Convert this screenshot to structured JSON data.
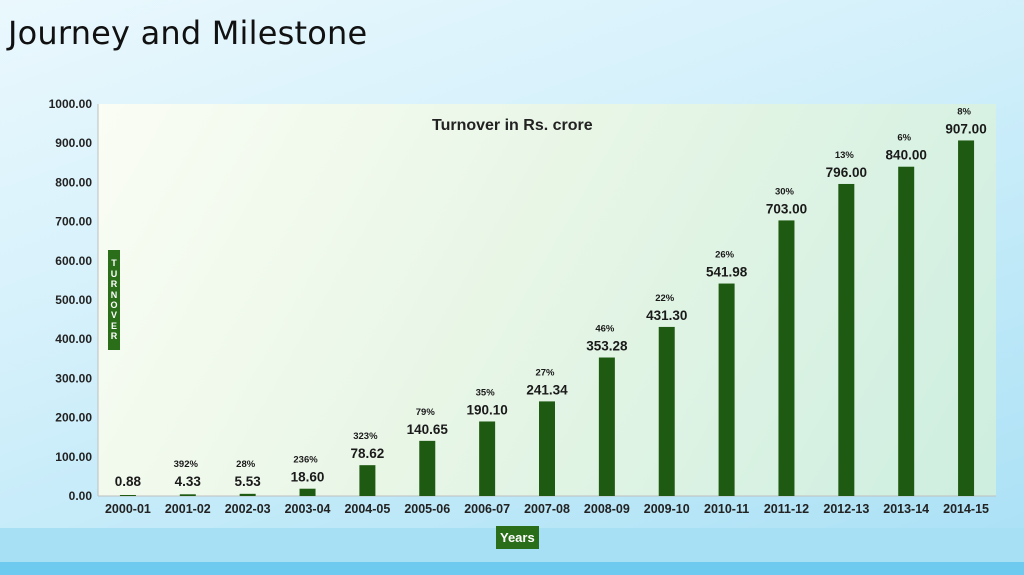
{
  "slide_title": "Journey and Milestone",
  "colors": {
    "bar": "#1e5a12",
    "label_box": "#2b6e19"
  },
  "chart_data": {
    "type": "bar",
    "title": "Turnover in Rs. crore",
    "xlabel": "Years",
    "ylabel": "TURNOVER",
    "ylim": [
      0,
      1000
    ],
    "yticks": [
      "0.00",
      "100.00",
      "200.00",
      "300.00",
      "400.00",
      "500.00",
      "600.00",
      "700.00",
      "800.00",
      "900.00",
      "1000.00"
    ],
    "categories": [
      "2000-01",
      "2001-02",
      "2002-03",
      "2003-04",
      "2004-05",
      "2005-06",
      "2006-07",
      "2007-08",
      "2008-09",
      "2009-10",
      "2010-11",
      "2011-12",
      "2012-13",
      "2013-14",
      "2014-15"
    ],
    "values": [
      0.88,
      4.33,
      5.53,
      18.6,
      78.62,
      140.65,
      190.1,
      241.34,
      353.28,
      431.3,
      541.98,
      703.0,
      796.0,
      840.0,
      907.0
    ],
    "value_labels": [
      "0.88",
      "4.33",
      "5.53",
      "18.60",
      "78.62",
      "140.65",
      "190.10",
      "241.34",
      "353.28",
      "431.30",
      "541.98",
      "703.00",
      "796.00",
      "840.00",
      "907.00"
    ],
    "growth_labels": [
      "",
      "392%",
      "28%",
      "236%",
      "323%",
      "79%",
      "35%",
      "27%",
      "46%",
      "22%",
      "26%",
      "30%",
      "13%",
      "6%",
      "8%"
    ],
    "grid": false,
    "legend": "none"
  }
}
